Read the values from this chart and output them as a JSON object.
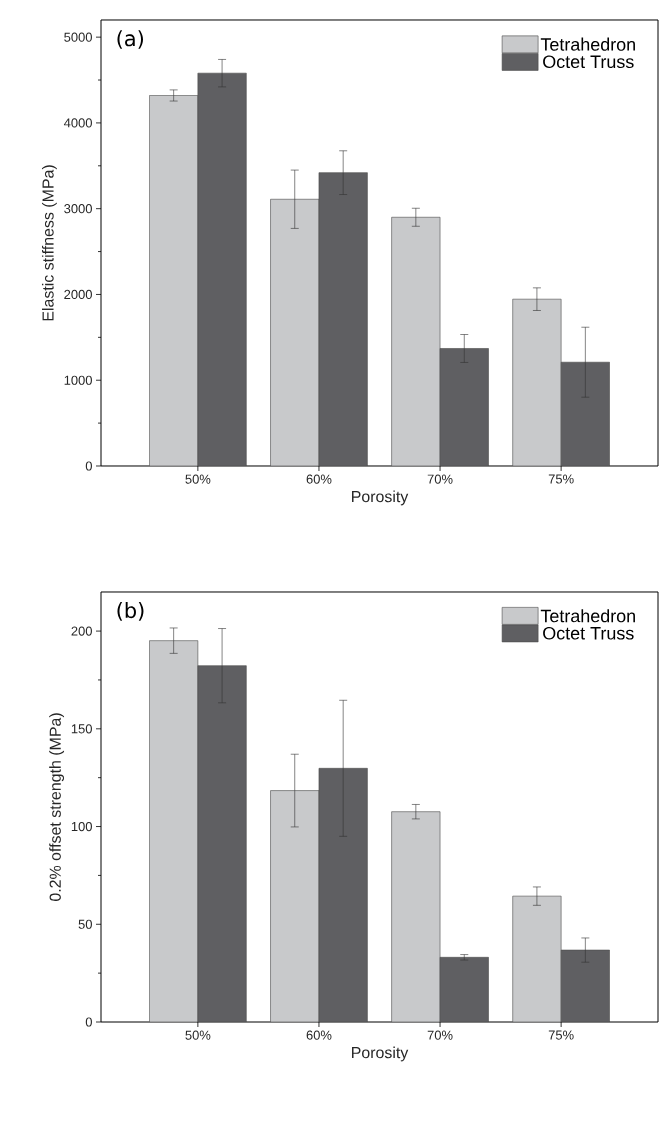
{
  "chart_data": [
    {
      "type": "bar",
      "categories": [
        "50%",
        "60%",
        "70%",
        "75%"
      ],
      "xlabel": "Porosity",
      "ylabel": "Elastic stiffness (MPa)",
      "ylim": [
        0,
        5200
      ],
      "yticks": [
        0,
        1000,
        2000,
        3000,
        4000,
        5000
      ],
      "legend": "top right",
      "annotations": [
        "(a)"
      ],
      "series": [
        {
          "name": "Tetrahedron",
          "color": "#c8c9cb",
          "values": [
            4320,
            3110,
            2900,
            1945
          ],
          "errors": [
            65,
            340,
            105,
            132
          ]
        },
        {
          "name": "Octet Truss",
          "color": "#5f5f62",
          "values": [
            4580,
            3420,
            1370,
            1210
          ],
          "errors": [
            160,
            255,
            163,
            408
          ]
        }
      ]
    },
    {
      "type": "bar",
      "categories": [
        "50%",
        "60%",
        "70%",
        "75%"
      ],
      "xlabel": "Porosity",
      "ylabel": "0.2% offset strength (MPa)",
      "ylim": [
        0,
        220
      ],
      "yticks": [
        0,
        50,
        100,
        150,
        200
      ],
      "legend": "top right",
      "annotations": [
        "(b)"
      ],
      "series": [
        {
          "name": "Tetrahedron",
          "color": "#c8c9cb",
          "values": [
            195.1,
            118.4,
            107.6,
            64.4
          ],
          "errors": [
            6.5,
            18.6,
            3.7,
            4.7
          ]
        },
        {
          "name": "Octet Truss",
          "color": "#5f5f62",
          "values": [
            182.3,
            129.8,
            33.1,
            36.8
          ],
          "errors": [
            19,
            34.8,
            1.4,
            6.2
          ]
        }
      ]
    }
  ]
}
